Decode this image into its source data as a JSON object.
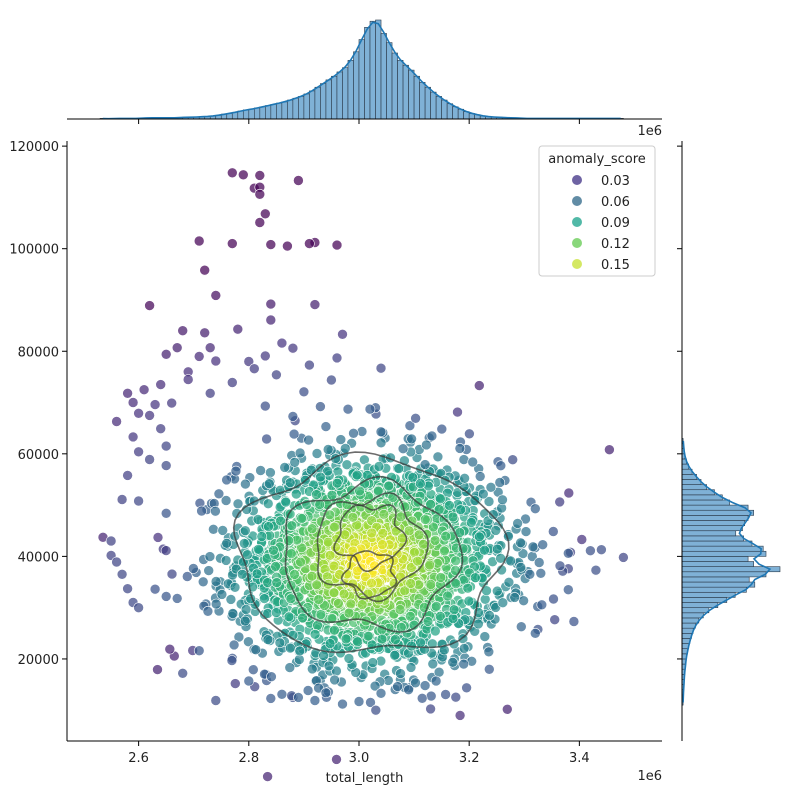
{
  "chart_data": {
    "type": "scatter",
    "title": "",
    "xlabel": "total_length",
    "ylabel": "",
    "x_offset_label": "1e6",
    "x_scale_factor": 1000000,
    "xlim": [
      2.47,
      3.55
    ],
    "ylim": [
      4000,
      121000
    ],
    "x_ticks": [
      2.6,
      2.8,
      3.0,
      3.2,
      3.4
    ],
    "y_ticks": [
      20000,
      40000,
      60000,
      80000,
      100000,
      120000
    ],
    "grid": false,
    "legend": {
      "title": "anomaly_score",
      "placement": "top-right",
      "entries": [
        {
          "label": "0.03",
          "color": "#4a3c8c"
        },
        {
          "label": "0.06",
          "color": "#3a6f8f"
        },
        {
          "label": "0.09",
          "color": "#26a891"
        },
        {
          "label": "0.12",
          "color": "#6ccd5a"
        },
        {
          "label": "0.15",
          "color": "#c9e23c"
        }
      ]
    },
    "colors": {
      "kde_line": "#1f77b4",
      "hist_fill": "#7fb1d6",
      "hist_edge": "#2b3a4a",
      "contour": "#3b3b3b"
    },
    "main_cluster": {
      "x_mean": 3.02,
      "x_std": 0.12,
      "y_mean": 39000,
      "y_std": 10000,
      "count": 2600
    },
    "outliers": [
      [
        2.77,
        114800
      ],
      [
        2.79,
        114400
      ],
      [
        2.81,
        111800
      ],
      [
        2.82,
        112000
      ],
      [
        2.82,
        114300
      ],
      [
        2.82,
        110600
      ],
      [
        2.89,
        113300
      ],
      [
        2.83,
        106800
      ],
      [
        2.82,
        105100
      ],
      [
        2.71,
        101500
      ],
      [
        2.77,
        101000
      ],
      [
        2.84,
        100800
      ],
      [
        2.87,
        100500
      ],
      [
        2.92,
        101200
      ],
      [
        2.96,
        100700
      ],
      [
        2.91,
        101000
      ],
      [
        2.72,
        95800
      ],
      [
        2.74,
        90900
      ],
      [
        2.62,
        88900
      ],
      [
        2.84,
        89200
      ],
      [
        2.92,
        89100
      ],
      [
        2.84,
        86100
      ],
      [
        2.68,
        84000
      ],
      [
        2.72,
        83600
      ],
      [
        2.78,
        84300
      ],
      [
        2.86,
        81600
      ],
      [
        2.97,
        83300
      ],
      [
        2.67,
        80700
      ],
      [
        2.73,
        80700
      ],
      [
        2.71,
        79000
      ],
      [
        2.65,
        79400
      ],
      [
        2.69,
        76000
      ],
      [
        2.74,
        78100
      ],
      [
        2.8,
        78000
      ],
      [
        2.83,
        79100
      ],
      [
        2.88,
        80600
      ],
      [
        2.91,
        77300
      ],
      [
        2.69,
        74500
      ],
      [
        2.64,
        73500
      ],
      [
        2.61,
        72500
      ],
      [
        2.58,
        71800
      ],
      [
        2.73,
        71800
      ],
      [
        2.77,
        73900
      ],
      [
        2.81,
        76600
      ],
      [
        2.85,
        75400
      ],
      [
        2.95,
        74400
      ],
      [
        2.96,
        78700
      ],
      [
        2.59,
        70000
      ],
      [
        2.63,
        69600
      ],
      [
        2.66,
        69900
      ],
      [
        2.62,
        67500
      ],
      [
        2.6,
        67900
      ],
      [
        2.56,
        66300
      ],
      [
        2.59,
        63300
      ],
      [
        2.64,
        64900
      ],
      [
        2.65,
        61500
      ],
      [
        2.6,
        60400
      ],
      [
        2.62,
        58900
      ],
      [
        2.65,
        57700
      ],
      [
        2.58,
        55800
      ],
      [
        2.57,
        51100
      ],
      [
        2.6,
        50800
      ],
      [
        2.65,
        48400
      ],
      [
        2.55,
        43000
      ],
      [
        2.55,
        40200
      ],
      [
        2.56,
        38900
      ],
      [
        2.57,
        36500
      ],
      [
        2.58,
        33700
      ],
      [
        2.59,
        31000
      ],
      [
        2.6,
        30000
      ],
      [
        2.63,
        33600
      ],
      [
        2.65,
        32200
      ],
      [
        2.67,
        31800
      ],
      [
        2.68,
        17200
      ],
      [
        2.71,
        21600
      ],
      [
        2.74,
        11900
      ],
      [
        2.8,
        15700
      ],
      [
        2.84,
        12300
      ],
      [
        2.86,
        13100
      ],
      [
        2.89,
        12500
      ],
      [
        2.92,
        11900
      ],
      [
        2.94,
        13400
      ],
      [
        2.97,
        11200
      ],
      [
        3.0,
        11700
      ],
      [
        3.04,
        13300
      ],
      [
        3.07,
        14600
      ],
      [
        3.09,
        14000
      ],
      [
        3.12,
        14800
      ],
      [
        3.14,
        15700
      ],
      [
        3.19,
        19000
      ],
      [
        3.32,
        25000
      ],
      [
        3.39,
        27300
      ],
      [
        3.38,
        33500
      ],
      [
        3.43,
        37300
      ],
      [
        3.48,
        39800
      ],
      [
        3.42,
        41100
      ],
      [
        3.44,
        41300
      ],
      [
        3.38,
        40600
      ],
      [
        3.33,
        36700
      ],
      [
        3.31,
        36500
      ],
      [
        3.32,
        49300
      ],
      [
        3.22,
        55600
      ],
      [
        3.12,
        57900
      ],
      [
        3.08,
        61000
      ],
      [
        3.04,
        76700
      ],
      [
        3.03,
        69000
      ],
      [
        3.02,
        68700
      ],
      [
        2.98,
        68700
      ],
      [
        2.93,
        69200
      ],
      [
        2.94,
        65300
      ],
      [
        2.99,
        64000
      ],
      [
        3.04,
        64300
      ],
      [
        2.88,
        67300
      ],
      [
        2.83,
        69300
      ],
      [
        2.9,
        72100
      ]
    ],
    "x_hist": {
      "bin_edges": [
        2.53,
        2.54,
        2.55,
        2.56,
        2.57,
        2.58,
        2.59,
        2.6,
        2.61,
        2.62,
        2.63,
        2.64,
        2.65,
        2.66,
        2.67,
        2.68,
        2.69,
        2.7,
        2.71,
        2.72,
        2.73,
        2.74,
        2.75,
        2.76,
        2.77,
        2.78,
        2.79,
        2.8,
        2.81,
        2.82,
        2.83,
        2.84,
        2.85,
        2.86,
        2.87,
        2.88,
        2.89,
        2.9,
        2.91,
        2.92,
        2.93,
        2.94,
        2.95,
        2.96,
        2.97,
        2.98,
        2.99,
        3.0,
        3.01,
        3.02,
        3.03,
        3.04,
        3.05,
        3.06,
        3.07,
        3.08,
        3.09,
        3.1,
        3.11,
        3.12,
        3.13,
        3.14,
        3.15,
        3.16,
        3.17,
        3.18,
        3.19,
        3.2,
        3.21,
        3.22,
        3.23,
        3.24,
        3.25,
        3.26,
        3.27,
        3.28,
        3.29,
        3.3,
        3.31,
        3.32,
        3.33,
        3.34,
        3.35,
        3.36,
        3.37,
        3.38,
        3.39,
        3.4,
        3.41,
        3.42,
        3.43,
        3.44,
        3.45,
        3.46,
        3.47,
        3.48
      ],
      "counts": [
        1,
        0,
        1,
        1,
        1,
        1,
        1,
        1,
        2,
        2,
        2,
        2,
        2,
        2,
        2,
        3,
        3,
        3,
        4,
        4,
        5,
        6,
        8,
        9,
        11,
        13,
        15,
        16,
        18,
        20,
        22,
        24,
        26,
        28,
        31,
        34,
        37,
        41,
        46,
        52,
        58,
        64,
        70,
        77,
        84,
        96,
        110,
        130,
        150,
        160,
        162,
        140,
        125,
        108,
        96,
        88,
        80,
        70,
        60,
        52,
        44,
        37,
        31,
        25,
        20,
        16,
        12,
        9,
        7,
        5,
        4,
        3,
        3,
        2,
        2,
        2,
        1,
        1,
        1,
        1,
        1,
        1,
        1,
        1,
        1,
        1,
        1,
        1,
        1,
        1,
        1,
        1,
        1,
        1,
        1
      ]
    },
    "y_hist": {
      "bin_edges": [
        11000,
        12000,
        13000,
        14000,
        15000,
        16000,
        17000,
        18000,
        19000,
        20000,
        21000,
        22000,
        23000,
        24000,
        25000,
        26000,
        27000,
        28000,
        29000,
        30000,
        31000,
        32000,
        33000,
        34000,
        35000,
        36000,
        37000,
        38000,
        39000,
        40000,
        41000,
        42000,
        43000,
        44000,
        45000,
        46000,
        47000,
        48000,
        49000,
        50000,
        51000,
        52000,
        53000,
        54000,
        55000,
        56000,
        57000,
        58000,
        59000,
        60000,
        61000,
        62000,
        63000
      ],
      "counts": [
        2,
        2,
        3,
        3,
        4,
        4,
        5,
        6,
        7,
        8,
        10,
        12,
        14,
        17,
        20,
        24,
        30,
        38,
        48,
        64,
        80,
        95,
        115,
        130,
        120,
        150,
        175,
        128,
        118,
        150,
        145,
        125,
        110,
        96,
        108,
        112,
        118,
        128,
        118,
        85,
        72,
        58,
        44,
        34,
        26,
        18,
        12,
        8,
        5,
        4,
        3,
        2
      ]
    }
  }
}
